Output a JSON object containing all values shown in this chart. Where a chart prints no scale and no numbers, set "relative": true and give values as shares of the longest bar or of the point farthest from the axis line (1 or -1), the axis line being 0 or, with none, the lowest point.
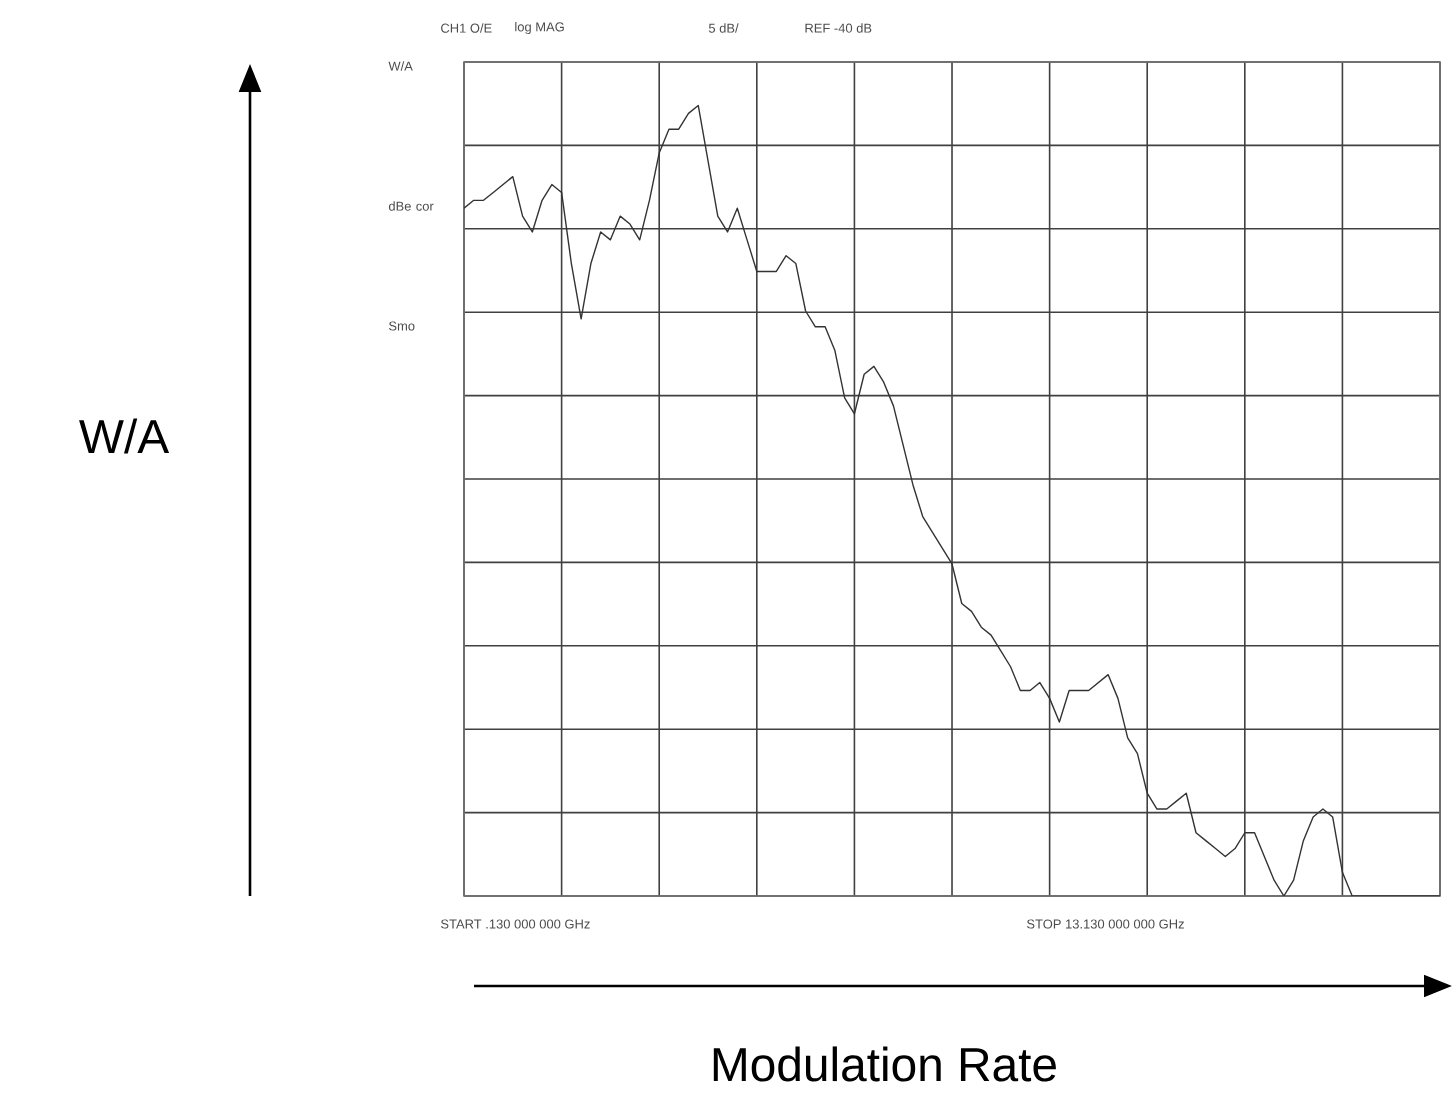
{
  "chart_data": {
    "type": "line",
    "relative": true,
    "xlabel": "Modulation Rate",
    "annotations": [
      "CH1 O/E",
      "log MAG",
      "5 dB/",
      "REF -40 dB",
      "W/A",
      "dBe cor",
      "Smo",
      "START .130 000 000 GHz",
      "STOP 13.130 000 000 GHz",
      "W/A"
    ],
    "categories": [
      null,
      null,
      null,
      null,
      null,
      null,
      null,
      null,
      null,
      null,
      null,
      null,
      null,
      null,
      null,
      null,
      null,
      null,
      null,
      null,
      null,
      null,
      null,
      null,
      null,
      null,
      null,
      null,
      null,
      null,
      null,
      null,
      null,
      null,
      null,
      null,
      null,
      null,
      null,
      null,
      null,
      null,
      null,
      null,
      null,
      null,
      null,
      null,
      null,
      null,
      null,
      null,
      null,
      null,
      null,
      null,
      null,
      null,
      null,
      null,
      null,
      null,
      null,
      null,
      null,
      null,
      null,
      null,
      null,
      null,
      null,
      null,
      null,
      null,
      null,
      null,
      null,
      null,
      null,
      null,
      null,
      null,
      null,
      null,
      null,
      null,
      null,
      null,
      null,
      null,
      null,
      null,
      null,
      null,
      null,
      null,
      null,
      null,
      null,
      null,
      null
    ],
    "grid": true,
    "marker": "none",
    "line_style": "solid",
    "series": [
      {
        "color": "#333333",
        "values": [
          0.87,
          0.88,
          0.88,
          0.89,
          0.9,
          0.91,
          0.86,
          0.84,
          0.88,
          0.9,
          0.89,
          0.8,
          0.73,
          0.8,
          0.84,
          0.83,
          0.86,
          0.85,
          0.83,
          0.88,
          0.94,
          0.97,
          0.97,
          0.99,
          1.0,
          0.93,
          0.86,
          0.84,
          0.87,
          0.83,
          0.79,
          0.79,
          0.79,
          0.81,
          0.8,
          0.74,
          0.72,
          0.72,
          0.69,
          0.63,
          0.61,
          0.66,
          0.67,
          0.65,
          0.62,
          0.57,
          0.52,
          0.48,
          0.46,
          0.44,
          0.42,
          0.37,
          0.36,
          0.34,
          0.33,
          0.31,
          0.29,
          0.26,
          0.26,
          0.27,
          0.25,
          0.22,
          0.26,
          0.26,
          0.26,
          0.27,
          0.28,
          0.25,
          0.2,
          0.18,
          0.13,
          0.11,
          0.11,
          0.12,
          0.13,
          0.08,
          0.07,
          0.06,
          0.05,
          0.06,
          0.08,
          0.08,
          0.05,
          0.02,
          0.0,
          0.02,
          0.07,
          0.1,
          0.11,
          0.1,
          0.03,
          0.0,
          0.0,
          0.0,
          0.0,
          0.0,
          0.0,
          0.0,
          0.0,
          0.0,
          0.0
        ]
      }
    ]
  }
}
